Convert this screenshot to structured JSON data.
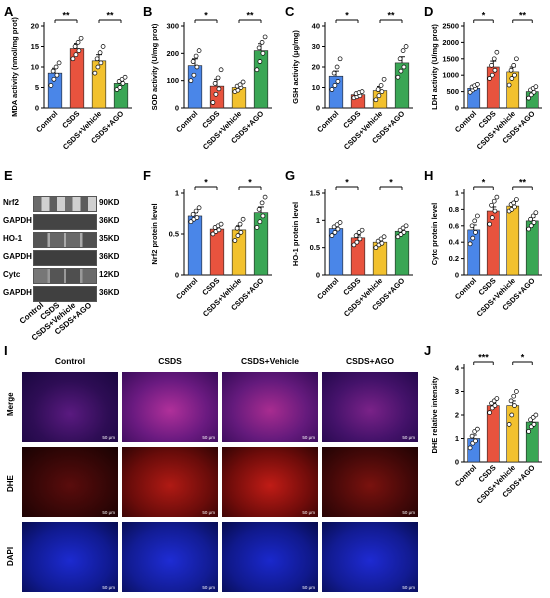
{
  "colors": {
    "Control": "#4a86e8",
    "CSDS": "#e8533e",
    "CSDS+Vehicle": "#f2c12e",
    "CSDS+AGO": "#3aa655"
  },
  "panels": {
    "A": {
      "letter": "A"
    },
    "B": {
      "letter": "B"
    },
    "C": {
      "letter": "C"
    },
    "D": {
      "letter": "D"
    },
    "E": {
      "letter": "E"
    },
    "F": {
      "letter": "F"
    },
    "G": {
      "letter": "G"
    },
    "H": {
      "letter": "H"
    },
    "I": {
      "letter": "I"
    },
    "J": {
      "letter": "J"
    }
  },
  "blots": {
    "rows": [
      {
        "left": "Nrf2",
        "right": "90KD"
      },
      {
        "left": "GAPDH",
        "right": "36KD"
      },
      {
        "left": "HO-1",
        "right": "35KD"
      },
      {
        "left": "GAPDH",
        "right": "36KD"
      },
      {
        "left": "Cytc",
        "right": "12KD"
      },
      {
        "left": "GAPDH",
        "right": "36KD"
      }
    ],
    "lanes": [
      "Control",
      "CSDS",
      "CSDS+Vehicle",
      "CSDS+AGO"
    ]
  },
  "micrographs": {
    "columns": [
      "Control",
      "CSDS",
      "CSDS+Vehicle",
      "CSDS+AGO"
    ],
    "rows": [
      "Merge",
      "DHE",
      "DAPI"
    ],
    "scale": "50 μm"
  },
  "chart_data": [
    {
      "id": "A",
      "type": "bar",
      "categories": [
        "Control",
        "CSDS",
        "CSDS+Vehicle",
        "CSDS+AGO"
      ],
      "values": [
        8.5,
        14.5,
        11.5,
        6
      ],
      "errors": [
        1.2,
        1.2,
        1.5,
        0.8
      ],
      "points": [
        [
          5.5,
          7,
          8,
          9,
          10,
          11
        ],
        [
          12,
          13,
          14,
          15,
          16,
          17
        ],
        [
          8.5,
          10,
          11,
          12,
          13.5,
          15
        ],
        [
          4.5,
          5,
          6,
          6.5,
          7,
          7.5
        ]
      ],
      "ylabel": "MDA activity (nmol/mg prot)",
      "ylim": [
        0,
        20
      ],
      "yticks": [
        0,
        5,
        10,
        15,
        20
      ],
      "sig": [
        {
          "a": 0,
          "b": 1,
          "label": "**"
        },
        {
          "a": 2,
          "b": 3,
          "label": "**"
        }
      ]
    },
    {
      "id": "B",
      "type": "bar",
      "categories": [
        "Control",
        "CSDS",
        "CSDS+Vehicle",
        "CSDS+AGO"
      ],
      "values": [
        155,
        80,
        75,
        210
      ],
      "errors": [
        25,
        25,
        10,
        25
      ],
      "points": [
        [
          100,
          120,
          150,
          170,
          190,
          210
        ],
        [
          20,
          50,
          70,
          90,
          110,
          140
        ],
        [
          60,
          65,
          75,
          80,
          85,
          95
        ],
        [
          140,
          170,
          200,
          220,
          240,
          260
        ]
      ],
      "ylabel": "SOD activity (U/mg prot)",
      "ylim": [
        0,
        300
      ],
      "yticks": [
        0,
        100,
        200,
        300
      ],
      "sig": [
        {
          "a": 0,
          "b": 1,
          "label": "*"
        },
        {
          "a": 2,
          "b": 3,
          "label": "**"
        }
      ]
    },
    {
      "id": "C",
      "type": "bar",
      "categories": [
        "Control",
        "CSDS",
        "CSDS+Vehicle",
        "CSDS+AGO"
      ],
      "values": [
        15.5,
        6.5,
        8.5,
        22
      ],
      "errors": [
        2.5,
        1,
        2,
        3
      ],
      "points": [
        [
          9,
          11,
          13,
          17,
          20,
          24
        ],
        [
          5,
          5.5,
          6,
          7,
          7.5,
          8
        ],
        [
          4,
          6,
          8,
          9,
          11,
          14
        ],
        [
          15,
          18,
          20,
          24,
          28,
          30
        ]
      ],
      "ylabel": "GSH activity (μg/mg)",
      "ylim": [
        0,
        40
      ],
      "yticks": [
        0,
        10,
        20,
        30,
        40
      ],
      "sig": [
        {
          "a": 0,
          "b": 1,
          "label": "*"
        },
        {
          "a": 2,
          "b": 3,
          "label": "**"
        }
      ]
    },
    {
      "id": "D",
      "type": "bar",
      "categories": [
        "Control",
        "CSDS",
        "CSDS+Vehicle",
        "CSDS+AGO"
      ],
      "values": [
        600,
        1250,
        1100,
        500
      ],
      "errors": [
        60,
        180,
        150,
        70
      ],
      "points": [
        [
          480,
          550,
          600,
          640,
          680,
          720
        ],
        [
          900,
          1000,
          1150,
          1300,
          1500,
          1700
        ],
        [
          700,
          900,
          1000,
          1150,
          1300,
          1500
        ],
        [
          300,
          400,
          480,
          550,
          600,
          650
        ]
      ],
      "ylabel": "LDH activity (U/mg prot)",
      "ylim": [
        0,
        2500
      ],
      "yticks": [
        0,
        500,
        1000,
        1500,
        2000,
        2500
      ],
      "sig": [
        {
          "a": 0,
          "b": 1,
          "label": "*"
        },
        {
          "a": 2,
          "b": 3,
          "label": "**"
        }
      ]
    },
    {
      "id": "F",
      "type": "bar",
      "categories": [
        "Control",
        "CSDS",
        "CSDS+Vehicle",
        "CSDS+AGO"
      ],
      "values": [
        0.72,
        0.56,
        0.55,
        0.76
      ],
      "errors": [
        0.04,
        0.04,
        0.05,
        0.07
      ],
      "points": [
        [
          0.65,
          0.68,
          0.7,
          0.74,
          0.78,
          0.82
        ],
        [
          0.5,
          0.53,
          0.55,
          0.58,
          0.6,
          0.62
        ],
        [
          0.42,
          0.48,
          0.52,
          0.57,
          0.62,
          0.68
        ],
        [
          0.58,
          0.65,
          0.72,
          0.8,
          0.88,
          0.95
        ]
      ],
      "ylabel": "Nrf2 protein level",
      "ylim": [
        0,
        1.0
      ],
      "yticks": [
        0.0,
        0.5,
        1.0
      ],
      "sig": [
        {
          "a": 0,
          "b": 1,
          "label": "*"
        },
        {
          "a": 2,
          "b": 3,
          "label": "*"
        }
      ]
    },
    {
      "id": "G",
      "type": "bar",
      "categories": [
        "Control",
        "CSDS",
        "CSDS+Vehicle",
        "CSDS+AGO"
      ],
      "values": [
        0.85,
        0.68,
        0.6,
        0.8
      ],
      "errors": [
        0.05,
        0.05,
        0.04,
        0.04
      ],
      "points": [
        [
          0.72,
          0.78,
          0.84,
          0.88,
          0.92,
          0.96
        ],
        [
          0.55,
          0.6,
          0.66,
          0.72,
          0.78,
          0.82
        ],
        [
          0.5,
          0.55,
          0.58,
          0.62,
          0.66,
          0.7
        ],
        [
          0.7,
          0.74,
          0.78,
          0.82,
          0.86,
          0.9
        ]
      ],
      "ylabel": "HO-1 protein level",
      "ylim": [
        0,
        1.5
      ],
      "yticks": [
        0.0,
        0.5,
        1.0,
        1.5
      ],
      "sig": [
        {
          "a": 0,
          "b": 1,
          "label": "*"
        },
        {
          "a": 2,
          "b": 3,
          "label": "*"
        }
      ]
    },
    {
      "id": "H",
      "type": "bar",
      "categories": [
        "Control",
        "CSDS",
        "CSDS+Vehicle",
        "CSDS+AGO"
      ],
      "values": [
        0.55,
        0.78,
        0.84,
        0.66
      ],
      "errors": [
        0.06,
        0.05,
        0.03,
        0.04
      ],
      "points": [
        [
          0.38,
          0.45,
          0.52,
          0.6,
          0.66,
          0.72
        ],
        [
          0.62,
          0.7,
          0.78,
          0.85,
          0.9,
          0.95
        ],
        [
          0.78,
          0.8,
          0.83,
          0.86,
          0.88,
          0.92
        ],
        [
          0.56,
          0.6,
          0.64,
          0.68,
          0.72,
          0.76
        ]
      ],
      "ylabel": "Cytc protein level",
      "ylim": [
        0,
        1.0
      ],
      "yticks": [
        0.0,
        0.2,
        0.4,
        0.6,
        0.8,
        1.0
      ],
      "sig": [
        {
          "a": 0,
          "b": 1,
          "label": "*"
        },
        {
          "a": 2,
          "b": 3,
          "label": "**"
        }
      ]
    },
    {
      "id": "J",
      "type": "bar",
      "categories": [
        "Control",
        "CSDS",
        "CSDS+Vehicle",
        "CSDS+AGO"
      ],
      "values": [
        1.0,
        2.4,
        2.4,
        1.7
      ],
      "errors": [
        0.15,
        0.12,
        0.2,
        0.15
      ],
      "points": [
        [
          0.6,
          0.8,
          0.9,
          1.1,
          1.3,
          1.4
        ],
        [
          2.1,
          2.3,
          2.4,
          2.5,
          2.6,
          2.7
        ],
        [
          1.6,
          2.0,
          2.4,
          2.6,
          2.8,
          3.0
        ],
        [
          1.3,
          1.5,
          1.6,
          1.8,
          1.9,
          2.0
        ]
      ],
      "ylabel": "DHE relative intensity",
      "ylim": [
        0,
        4
      ],
      "yticks": [
        0,
        1,
        2,
        3,
        4
      ],
      "sig": [
        {
          "a": 0,
          "b": 1,
          "label": "***"
        },
        {
          "a": 2,
          "b": 3,
          "label": "*"
        }
      ]
    }
  ]
}
